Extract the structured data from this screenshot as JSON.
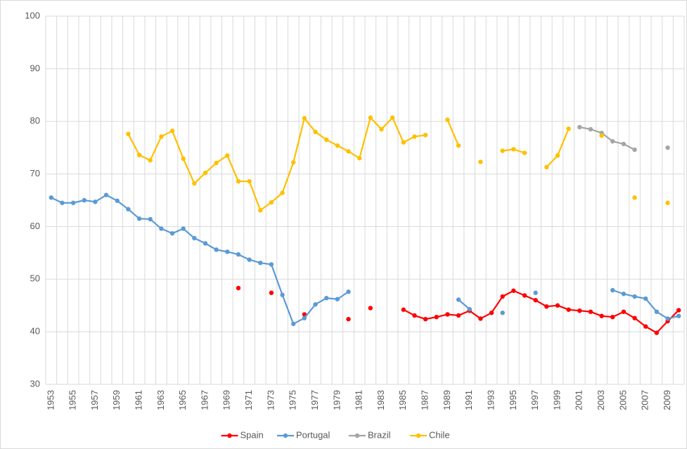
{
  "chart_data": {
    "type": "line",
    "categories": [
      1953,
      null,
      1955,
      null,
      1957,
      null,
      1959,
      null,
      1961,
      null,
      1963,
      null,
      1965,
      null,
      1967,
      null,
      1969,
      null,
      1971,
      null,
      1973,
      null,
      1975,
      null,
      1977,
      null,
      1979,
      null,
      1981,
      null,
      1983,
      null,
      1985,
      null,
      1987,
      null,
      1989,
      null,
      1991,
      null,
      1993,
      null,
      1995,
      null,
      1997,
      null,
      1999,
      null,
      2001,
      null,
      2003,
      null,
      2005,
      null,
      2007,
      null,
      2009,
      null
    ],
    "series": [
      {
        "name": "Spain",
        "color": "#ff0000",
        "values": [
          null,
          null,
          null,
          null,
          null,
          null,
          null,
          null,
          null,
          null,
          null,
          null,
          null,
          null,
          null,
          null,
          null,
          48.3,
          null,
          null,
          47.4,
          null,
          null,
          43.3,
          null,
          null,
          null,
          42.4,
          null,
          44.5,
          null,
          null,
          44.2,
          43.1,
          42.4,
          42.8,
          43.3,
          43.1,
          44.0,
          42.5,
          43.6,
          46.7,
          47.8,
          46.9,
          46.0,
          44.8,
          45.0,
          44.2,
          44.0,
          43.8,
          43.0,
          42.8,
          43.8,
          42.6,
          41.0,
          39.8,
          42.0,
          44.1
        ]
      },
      {
        "name": "Portugal",
        "color": "#5b9bd5",
        "values": [
          65.5,
          64.5,
          64.5,
          65.0,
          64.7,
          66.0,
          64.9,
          63.3,
          61.5,
          61.4,
          59.6,
          58.7,
          59.6,
          57.8,
          56.8,
          55.6,
          55.2,
          54.7,
          53.7,
          53.1,
          52.8,
          47.0,
          41.5,
          42.6,
          45.2,
          46.4,
          46.2,
          47.6,
          null,
          null,
          null,
          null,
          null,
          null,
          null,
          null,
          null,
          46.1,
          44.3,
          null,
          null,
          43.6,
          null,
          null,
          47.4,
          null,
          null,
          null,
          null,
          null,
          null,
          47.9,
          47.2,
          46.7,
          46.3,
          43.8,
          42.5,
          43.0
        ]
      },
      {
        "name": "Brazil",
        "color": "#a5a5a5",
        "values": [
          null,
          null,
          null,
          null,
          null,
          null,
          null,
          null,
          null,
          null,
          null,
          null,
          null,
          null,
          null,
          null,
          null,
          null,
          null,
          null,
          null,
          null,
          null,
          null,
          null,
          null,
          null,
          null,
          null,
          null,
          null,
          null,
          null,
          null,
          null,
          null,
          null,
          null,
          null,
          null,
          null,
          null,
          null,
          null,
          null,
          null,
          null,
          null,
          78.9,
          78.5,
          77.8,
          76.2,
          75.7,
          74.6,
          null,
          null,
          75.0,
          null
        ]
      },
      {
        "name": "Chile",
        "color": "#ffc000",
        "values": [
          null,
          null,
          null,
          null,
          null,
          null,
          null,
          77.6,
          73.6,
          72.6,
          77.1,
          78.2,
          72.9,
          68.2,
          70.2,
          72.1,
          73.5,
          68.6,
          68.6,
          63.1,
          64.6,
          66.4,
          72.2,
          80.6,
          78.0,
          76.5,
          75.4,
          74.3,
          73.0,
          80.7,
          78.5,
          80.7,
          76.0,
          77.1,
          77.4,
          null,
          80.3,
          75.4,
          null,
          72.3,
          null,
          74.4,
          74.7,
          74.0,
          null,
          71.3,
          73.5,
          78.6,
          null,
          null,
          77.3,
          null,
          null,
          65.5,
          null,
          null,
          64.5,
          null
        ]
      }
    ],
    "ylim": [
      30,
      100
    ],
    "yticks": [
      30,
      40,
      50,
      60,
      70,
      80,
      90,
      100
    ],
    "grid": true,
    "legend": "bottom"
  }
}
